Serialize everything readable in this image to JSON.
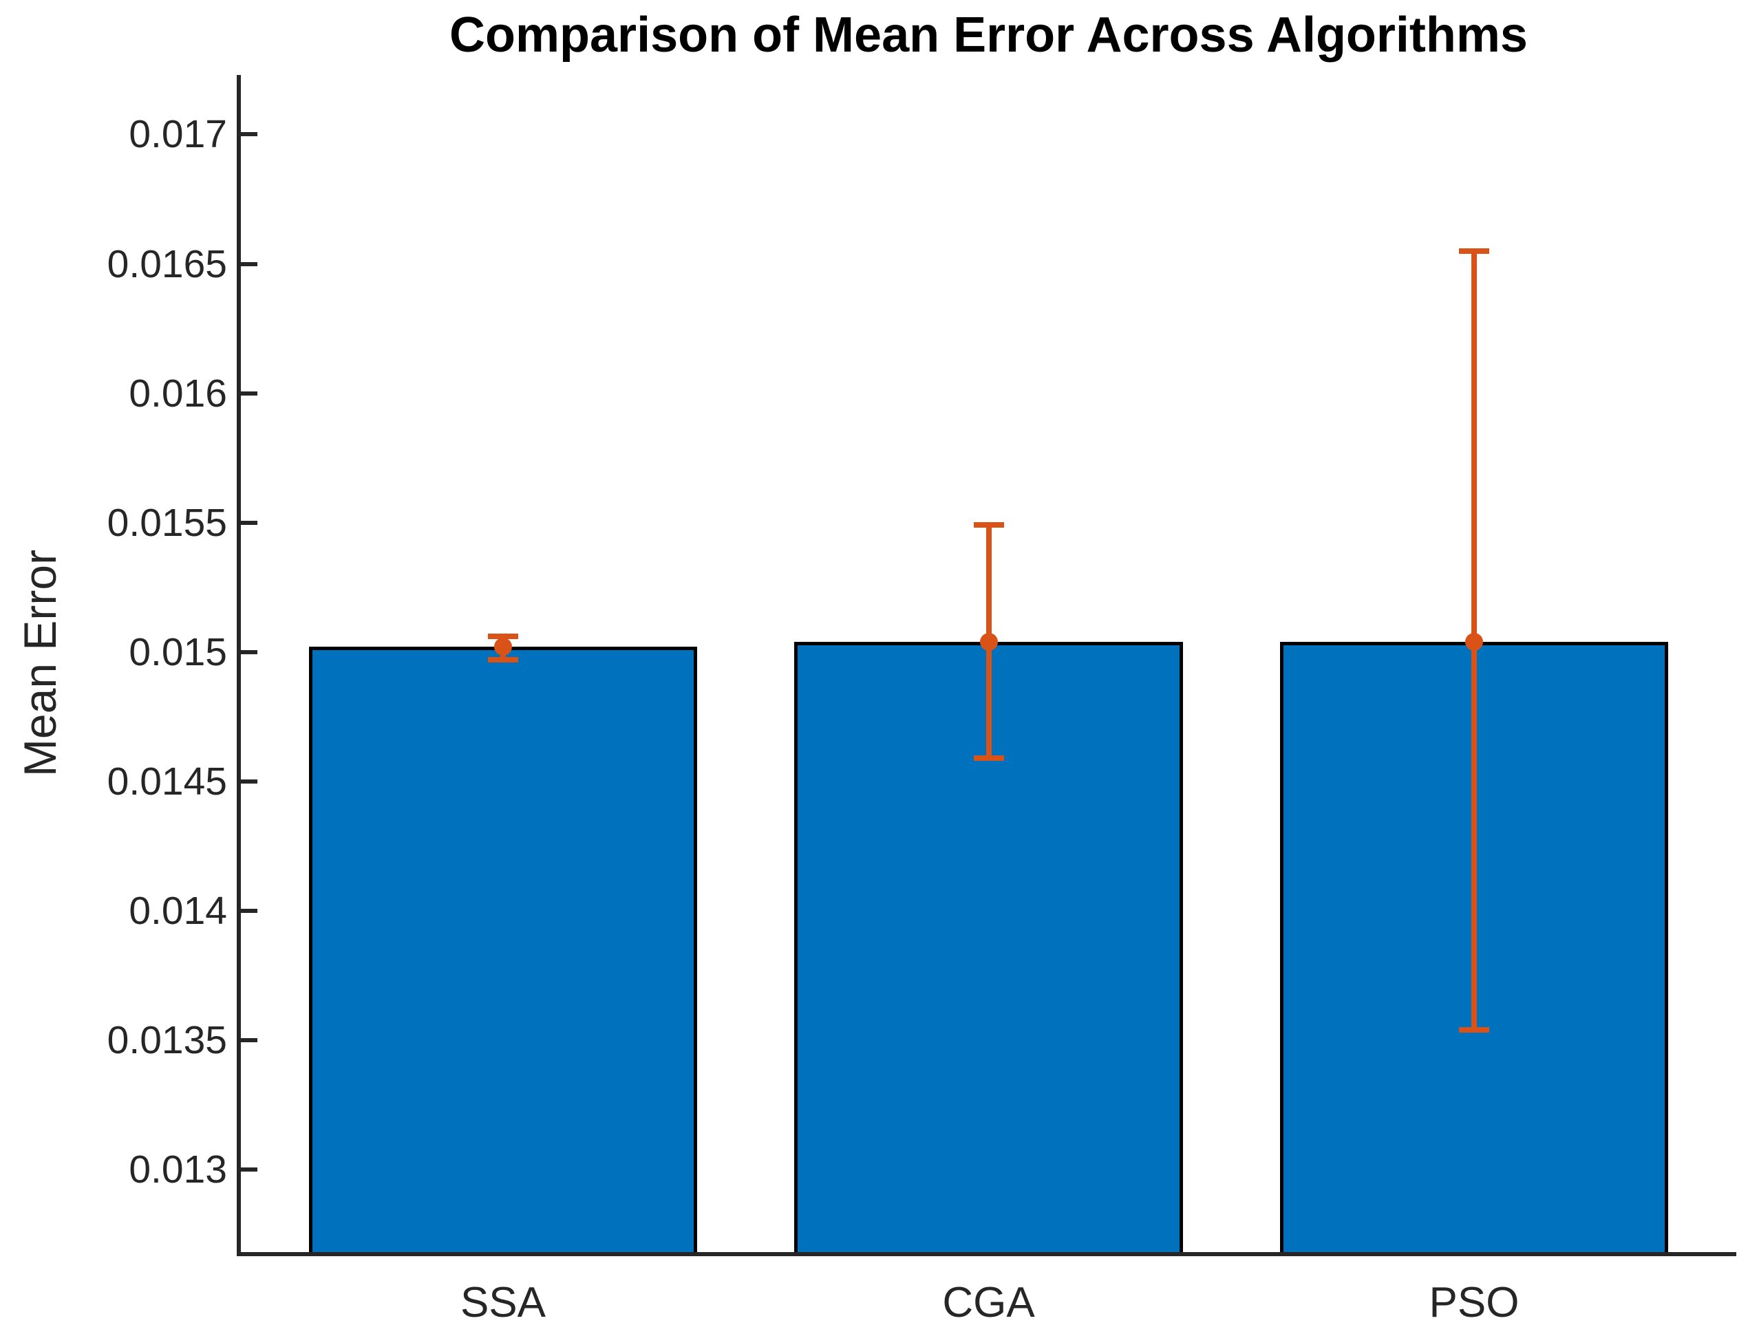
{
  "chart_data": {
    "type": "bar",
    "title": "Comparison of Mean Error Across Algorithms",
    "xlabel": "",
    "ylabel": "Mean Error",
    "categories": [
      "SSA",
      "CGA",
      "PSO"
    ],
    "series": [
      {
        "name": "Mean Error",
        "values": [
          0.01502,
          0.01504,
          0.01504
        ],
        "error_low": [
          0.01497,
          0.01459,
          0.01354
        ],
        "error_high": [
          0.01506,
          0.01549,
          0.01655
        ]
      }
    ],
    "ylim": [
      0.01268,
      0.01723
    ],
    "yticks": [
      0.013,
      0.0135,
      0.014,
      0.0145,
      0.015,
      0.0155,
      0.016,
      0.0165,
      0.017
    ],
    "ytick_labels": [
      "0.013",
      "0.0135",
      "0.014",
      "0.0145",
      "0.015",
      "0.0155",
      "0.016",
      "0.0165",
      "0.017"
    ],
    "grid": false,
    "legend": null,
    "bar_width_fraction": 0.8,
    "bar_color": "#0072BD",
    "bar_edge_color": "#000000",
    "error_color": "#D95319",
    "axis_color": "#262626"
  }
}
